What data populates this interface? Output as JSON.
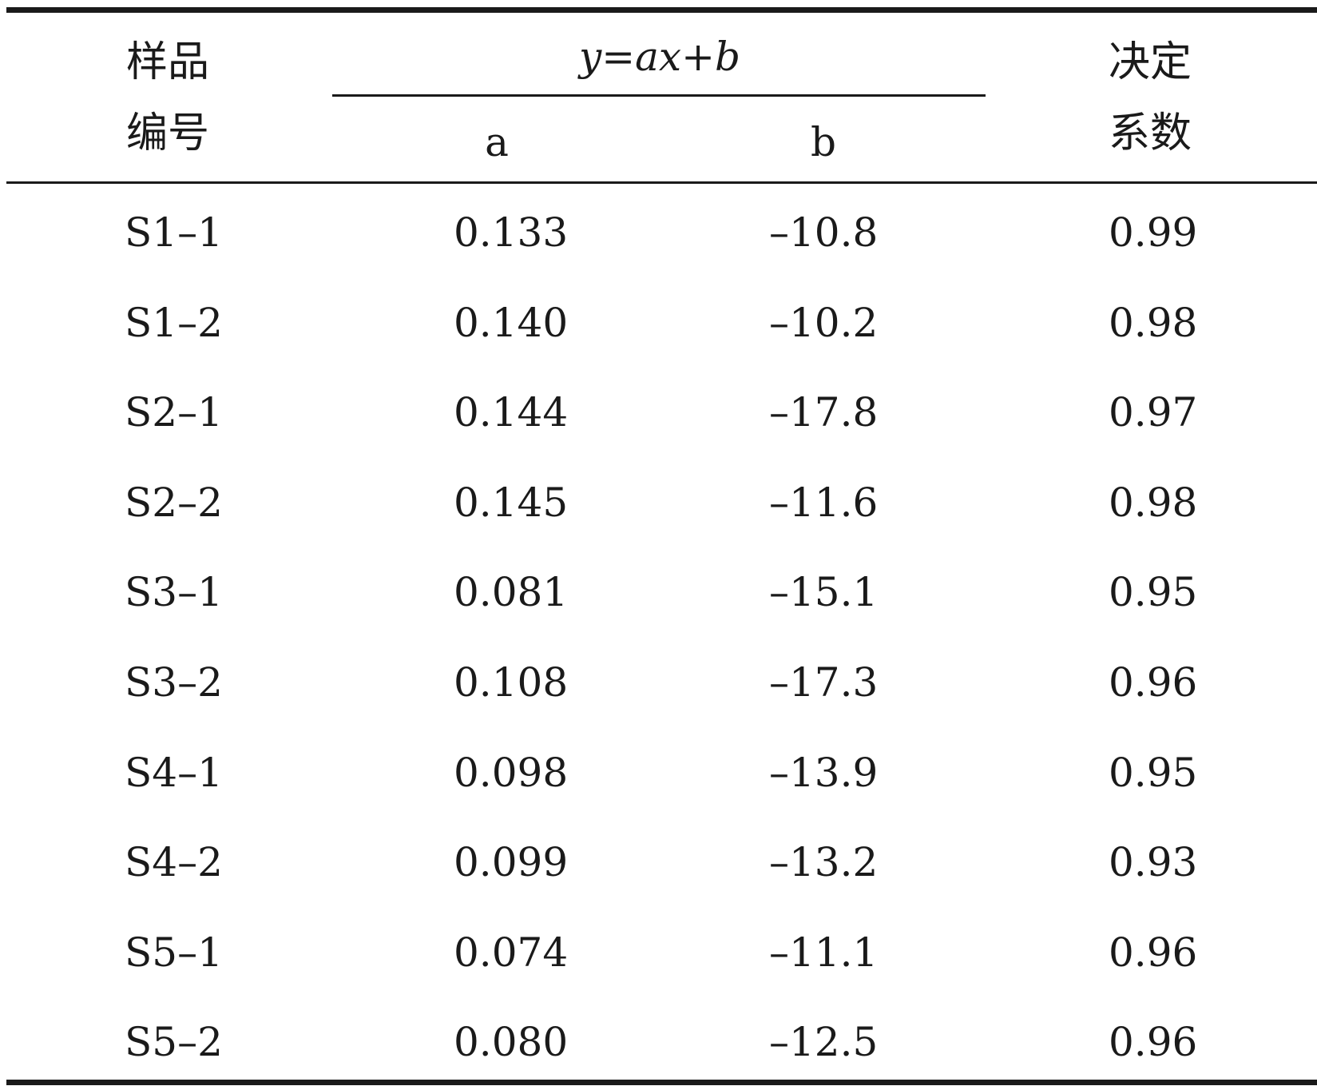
{
  "header": {
    "sample_line1": "样品",
    "sample_line2": "编号",
    "formula": "y=ax+b",
    "col_a": "a",
    "col_b": "b",
    "r2_line1": "决定",
    "r2_line2": "系数"
  },
  "rows": [
    {
      "id": "S1–1",
      "a": "0.133",
      "b": "–10.8",
      "r2": "0.99"
    },
    {
      "id": "S1–2",
      "a": "0.140",
      "b": "–10.2",
      "r2": "0.98"
    },
    {
      "id": "S2–1",
      "a": "0.144",
      "b": "–17.8",
      "r2": "0.97"
    },
    {
      "id": "S2–2",
      "a": "0.145",
      "b": "–11.6",
      "r2": "0.98"
    },
    {
      "id": "S3–1",
      "a": "0.081",
      "b": "–15.1",
      "r2": "0.95"
    },
    {
      "id": "S3–2",
      "a": "0.108",
      "b": "–17.3",
      "r2": "0.96"
    },
    {
      "id": "S4–1",
      "a": "0.098",
      "b": "–13.9",
      "r2": "0.95"
    },
    {
      "id": "S4–2",
      "a": "0.099",
      "b": "–13.2",
      "r2": "0.93"
    },
    {
      "id": "S5–1",
      "a": "0.074",
      "b": "–11.1",
      "r2": "0.96"
    },
    {
      "id": "S5–2",
      "a": "0.080",
      "b": "–12.5",
      "r2": "0.96"
    }
  ]
}
